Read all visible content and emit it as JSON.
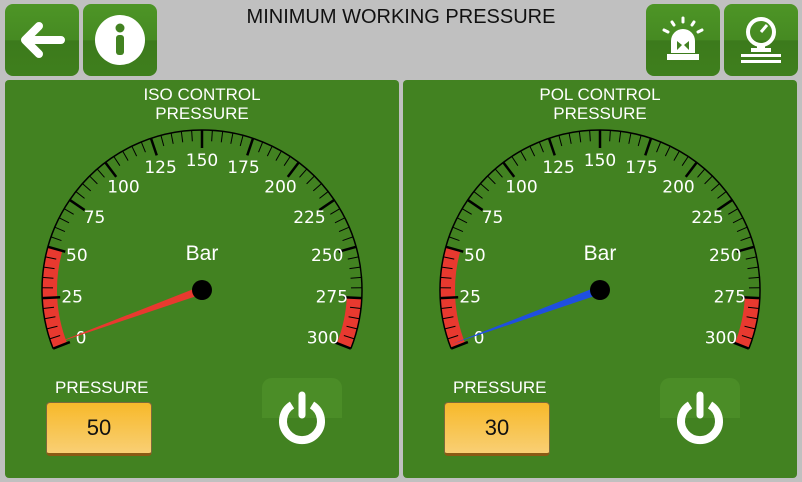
{
  "header": {
    "title": "MINIMUM WORKING PRESSURE",
    "buttons": [
      {
        "icon": "back-arrow-icon"
      },
      {
        "icon": "info-icon"
      },
      {
        "icon": "alarm-beacon-icon"
      },
      {
        "icon": "pressure-gauge-icon"
      }
    ]
  },
  "gauge_scale": {
    "min": 0,
    "max": 300,
    "major_step": 25,
    "minor_step": 5,
    "labels": [
      "0",
      "25",
      "50",
      "75",
      "100",
      "125",
      "150",
      "175",
      "200",
      "225",
      "250",
      "275",
      "300"
    ],
    "unit": "Bar",
    "red_zones": [
      [
        0,
        50
      ],
      [
        275,
        300
      ]
    ]
  },
  "panels": [
    {
      "title_line1": "ISO CONTROL",
      "title_line2": "PRESSURE",
      "unit": "Bar",
      "needle_value": 2,
      "needle_color": "#e8392f",
      "pressure_label": "PRESSURE",
      "pressure_value": "50",
      "power_icon": "power-icon"
    },
    {
      "title_line1": "POL CONTROL",
      "title_line2": "PRESSURE",
      "unit": "Bar",
      "needle_value": 2,
      "needle_color": "#1f4fe0",
      "pressure_label": "PRESSURE",
      "pressure_value": "30",
      "power_icon": "power-icon"
    }
  ],
  "colors": {
    "panel": "#428221",
    "red_zone": "#e8392f",
    "pressure_box": "#f7b92a"
  }
}
